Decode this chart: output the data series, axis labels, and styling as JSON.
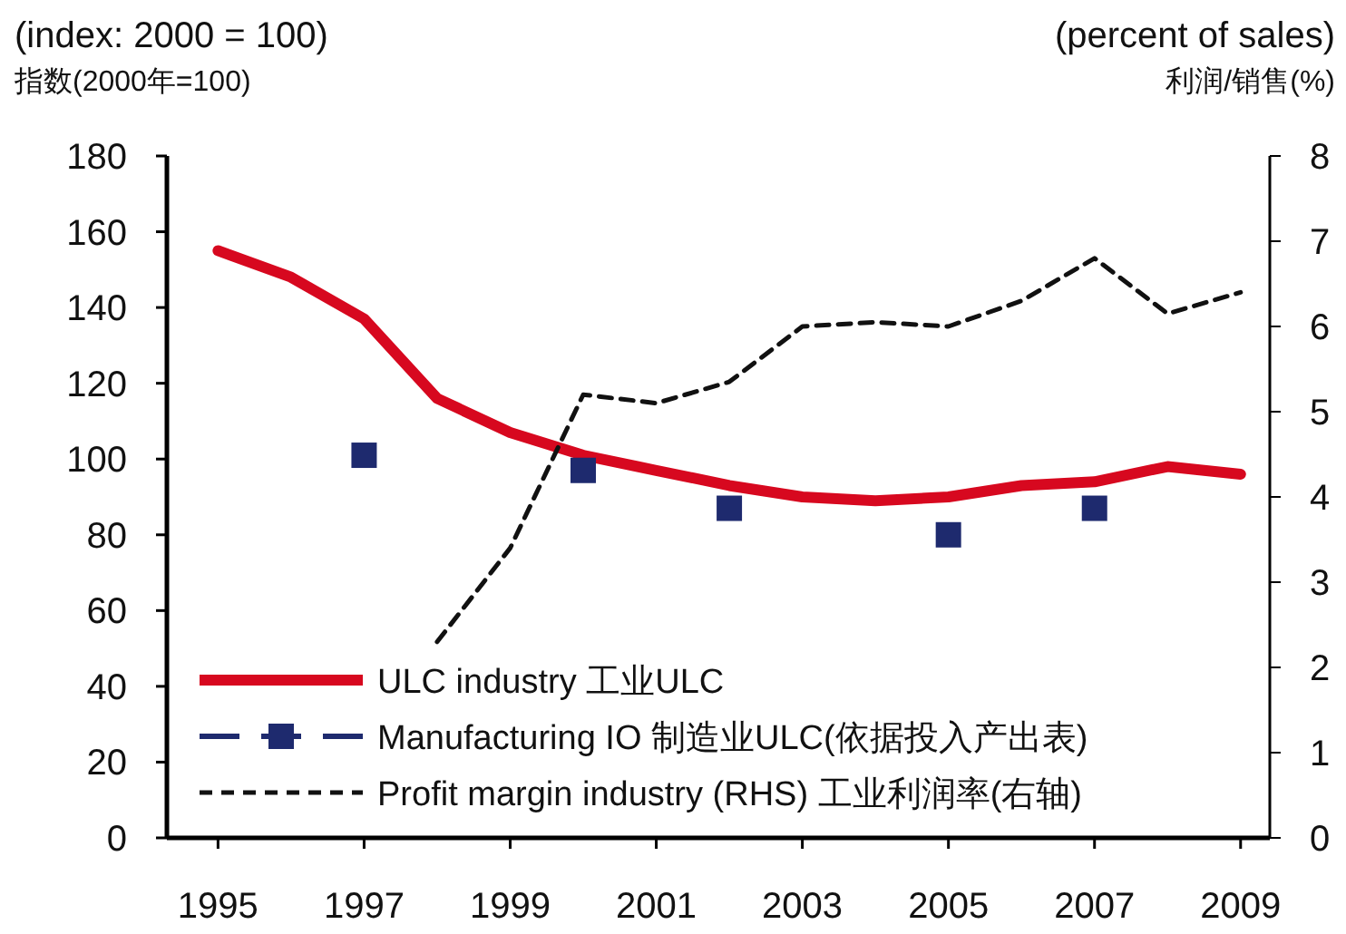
{
  "chart_data": {
    "type": "line",
    "ylabel": "(index: 2000 = 100)\n指数(2000年=100)",
    "y2label": "(percent of sales)\n利润/销售(%)",
    "x": [
      1995,
      1996,
      1997,
      1998,
      1999,
      2000,
      2001,
      2002,
      2003,
      2004,
      2005,
      2006,
      2007,
      2008,
      2009
    ],
    "series": [
      {
        "name": "ULC industry 工业ULC",
        "color": "#d7081f",
        "line_style": "solid",
        "values": [
          155,
          148,
          137,
          116,
          107,
          101,
          97,
          93,
          90,
          89,
          90,
          93,
          94,
          98,
          96
        ]
      },
      {
        "name": "Manufacturing IO 制造业ULC(依据投入产出表)",
        "type": "scatter",
        "color": "#1e2a6e",
        "marker": "square",
        "x": [
          1997,
          2000,
          2002,
          2005,
          2007
        ],
        "values": [
          101,
          97,
          87,
          80,
          87
        ]
      },
      {
        "name": "Profit margin industry (RHS) 工业利润率(右轴)",
        "axis": "y2",
        "color": "#111111",
        "line_style": "dashed",
        "x": [
          1998,
          1999,
          2000,
          2001,
          2002,
          2003,
          2004,
          2005,
          2006,
          2007,
          2008,
          2009
        ],
        "values": [
          2.3,
          3.4,
          5.2,
          5.1,
          5.35,
          6.0,
          6.05,
          6.0,
          6.3,
          6.8,
          6.15,
          6.4
        ]
      }
    ],
    "xlim": [
      1994.3,
      2009.4
    ],
    "xticks": [
      1995,
      1997,
      1999,
      2001,
      2003,
      2005,
      2007,
      2009
    ],
    "ylim": [
      0,
      180
    ],
    "yticks": [
      0,
      20,
      40,
      60,
      80,
      100,
      120,
      140,
      160,
      180
    ],
    "y2lim": [
      0,
      8
    ],
    "y2ticks": [
      0,
      1,
      2,
      3,
      4,
      5,
      6,
      7,
      8
    ],
    "legend": "bottom left"
  }
}
